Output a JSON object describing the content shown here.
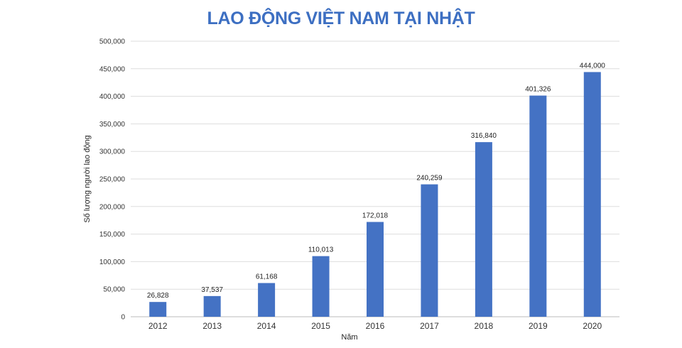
{
  "chart_data": {
    "type": "bar",
    "title": "LAO ĐỘNG VIỆT NAM TẠI NHẬT",
    "xlabel": "Năm",
    "ylabel": "Số lượng người lao động",
    "categories": [
      "2012",
      "2013",
      "2014",
      "2015",
      "2016",
      "2017",
      "2018",
      "2019",
      "2020"
    ],
    "values": [
      26828,
      37537,
      61168,
      110013,
      172018,
      240259,
      316840,
      401326,
      444000
    ],
    "value_labels": [
      "26,828",
      "37,537",
      "61,168",
      "110,013",
      "172,018",
      "240,259",
      "316,840",
      "401,326",
      "444,000"
    ],
    "ylim": [
      0,
      500000
    ],
    "y_ticks": [
      0,
      50000,
      100000,
      150000,
      200000,
      250000,
      300000,
      350000,
      400000,
      450000,
      500000
    ],
    "y_tick_labels": [
      "0",
      "50,000",
      "100,000",
      "150,000",
      "200,000",
      "250,000",
      "300,000",
      "350,000",
      "400,000",
      "450,000",
      "500,000"
    ],
    "grid": true,
    "legend": "none",
    "colors": {
      "bar": "#4472c4",
      "title": "#3d6fc2",
      "grid": "#dddddd"
    }
  }
}
